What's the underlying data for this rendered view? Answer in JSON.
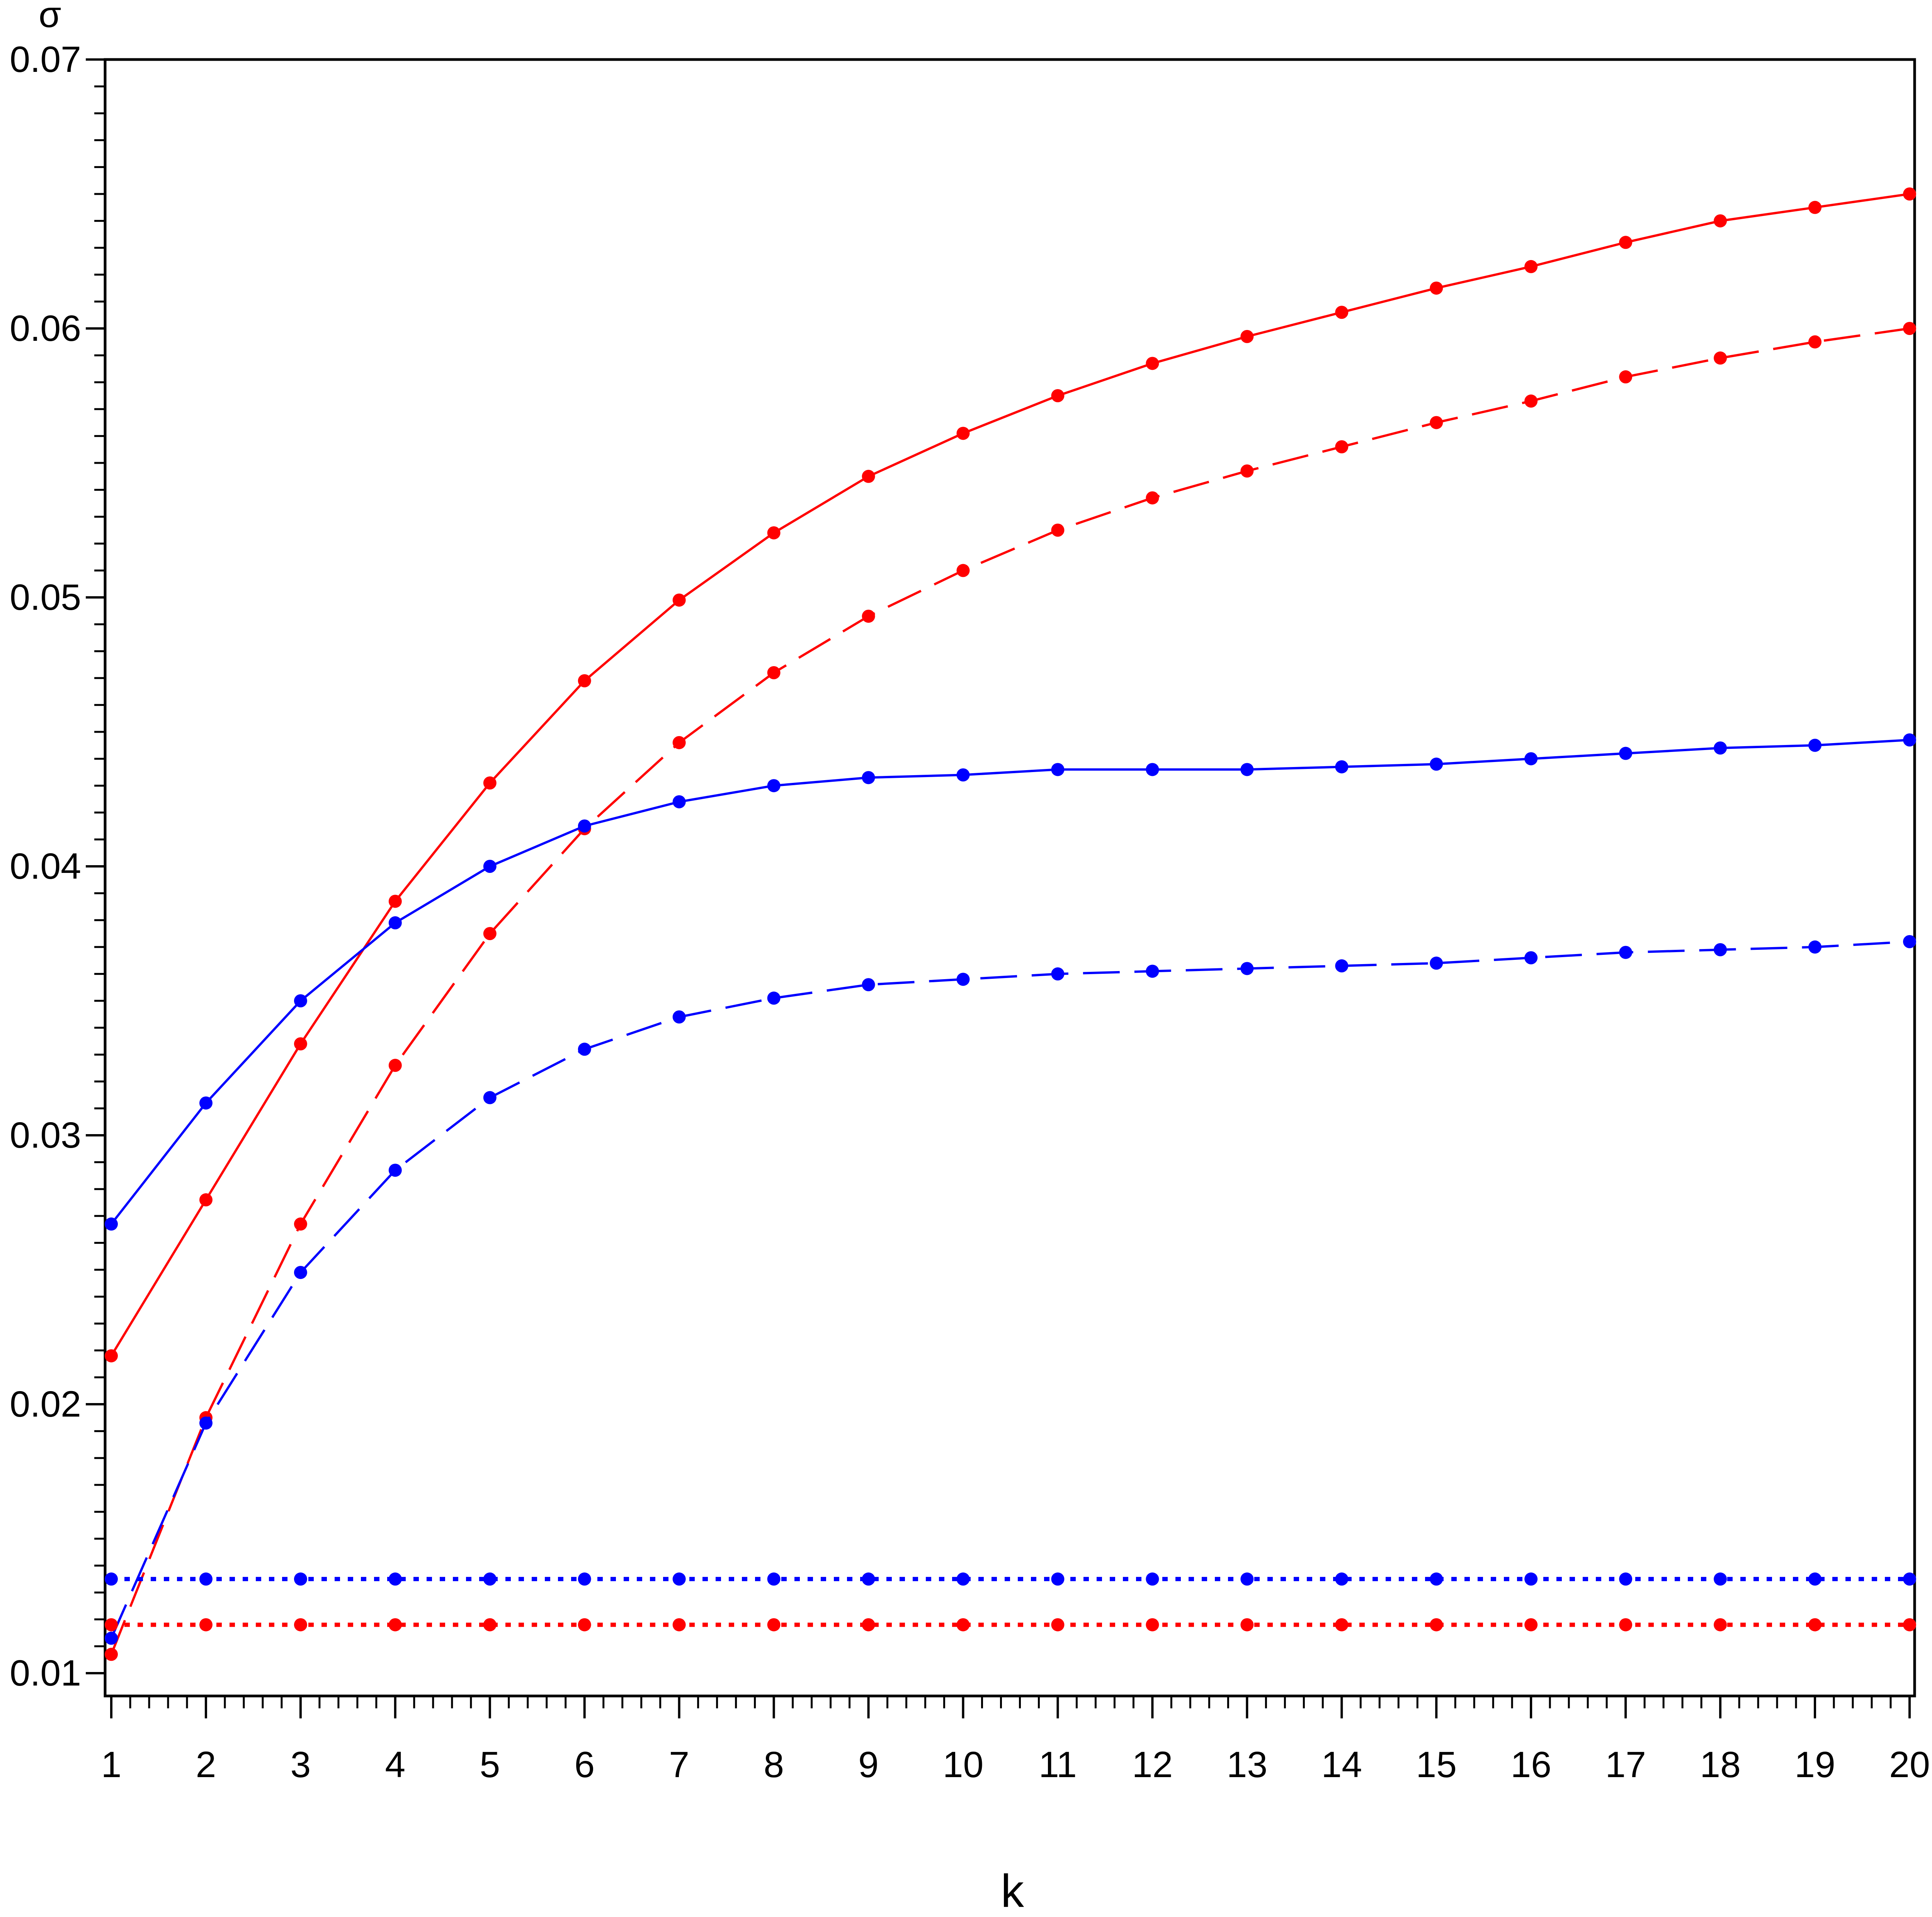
{
  "chart_data": {
    "type": "line",
    "xlabel": "k",
    "ylabel": "σ",
    "x": [
      1,
      2,
      3,
      4,
      5,
      6,
      7,
      8,
      9,
      10,
      11,
      12,
      13,
      14,
      15,
      16,
      17,
      18,
      19,
      20
    ],
    "xlim": [
      1,
      20
    ],
    "ylim": [
      0.01,
      0.07
    ],
    "yticks": [
      "0.01",
      "0.02",
      "0.03",
      "0.04",
      "0.05",
      "0.06",
      "0.07"
    ],
    "xticks": [
      "1",
      "2",
      "3",
      "4",
      "5",
      "6",
      "7",
      "8",
      "9",
      "10",
      "11",
      "12",
      "13",
      "14",
      "15",
      "16",
      "17",
      "18",
      "19",
      "20"
    ],
    "grid": false,
    "legend": "none",
    "series": [
      {
        "color": "#ff0000",
        "style": "solid",
        "values": [
          0.0218,
          0.0276,
          0.0334,
          0.0387,
          0.0431,
          0.0469,
          0.0499,
          0.0524,
          0.0545,
          0.0561,
          0.0575,
          0.0587,
          0.0597,
          0.0606,
          0.0615,
          0.0623,
          0.0632,
          0.064,
          0.0645,
          0.065
        ]
      },
      {
        "color": "#ff0000",
        "style": "dashed",
        "values": [
          0.0107,
          0.0195,
          0.0267,
          0.0326,
          0.0375,
          0.0414,
          0.0446,
          0.0472,
          0.0493,
          0.051,
          0.0525,
          0.0537,
          0.0547,
          0.0556,
          0.0565,
          0.0573,
          0.0582,
          0.0589,
          0.0595,
          0.06
        ]
      },
      {
        "color": "#0000ff",
        "style": "solid",
        "values": [
          0.0267,
          0.0312,
          0.035,
          0.0379,
          0.04,
          0.0415,
          0.0424,
          0.043,
          0.0433,
          0.0434,
          0.0436,
          0.0436,
          0.0436,
          0.0437,
          0.0438,
          0.044,
          0.0442,
          0.0444,
          0.0445,
          0.0447
        ]
      },
      {
        "color": "#0000ff",
        "style": "dashed",
        "values": [
          0.0113,
          0.0193,
          0.0249,
          0.0287,
          0.0314,
          0.0332,
          0.0344,
          0.0351,
          0.0356,
          0.0358,
          0.036,
          0.0361,
          0.0362,
          0.0363,
          0.0364,
          0.0366,
          0.0368,
          0.0369,
          0.037,
          0.0372
        ]
      },
      {
        "color": "#0000ff",
        "style": "dotted",
        "values": [
          0.0135,
          0.0135,
          0.0135,
          0.0135,
          0.0135,
          0.0135,
          0.0135,
          0.0135,
          0.0135,
          0.0135,
          0.0135,
          0.0135,
          0.0135,
          0.0135,
          0.0135,
          0.0135,
          0.0135,
          0.0135,
          0.0135,
          0.0135
        ]
      },
      {
        "color": "#ff0000",
        "style": "dotted",
        "values": [
          0.0118,
          0.0118,
          0.0118,
          0.0118,
          0.0118,
          0.0118,
          0.0118,
          0.0118,
          0.0118,
          0.0118,
          0.0118,
          0.0118,
          0.0118,
          0.0118,
          0.0118,
          0.0118,
          0.0118,
          0.0118,
          0.0118,
          0.0118
        ]
      }
    ]
  }
}
